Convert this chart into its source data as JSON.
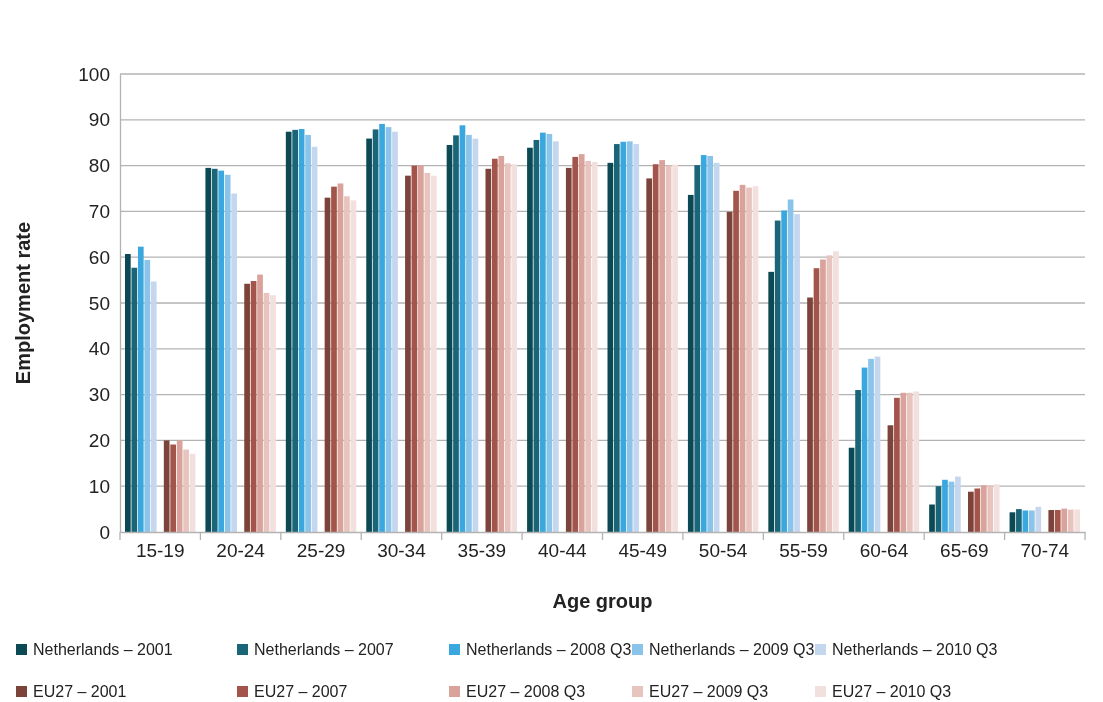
{
  "chart_data": {
    "type": "bar",
    "xlabel": "Age group",
    "ylabel": "Employment rate",
    "categories": [
      "15-19",
      "20-24",
      "25-29",
      "30-34",
      "35-39",
      "40-44",
      "45-49",
      "50-54",
      "55-59",
      "60-64",
      "65-69",
      "70-74"
    ],
    "ylim": [
      0,
      100
    ],
    "yticks": [
      0,
      10,
      20,
      30,
      40,
      50,
      60,
      70,
      80,
      90,
      100
    ],
    "grid": "y",
    "legend": "bottom",
    "series": [
      {
        "name": "Netherlands – 2001",
        "color": "#0b4a55",
        "values": [
          60.7,
          79.5,
          87.4,
          85.9,
          84.5,
          83.9,
          80.6,
          73.6,
          56.8,
          18.4,
          6,
          4.3
        ]
      },
      {
        "name": "Netherlands – 2007",
        "color": "#1a6577",
        "values": [
          57.7,
          79.3,
          87.8,
          87.9,
          86.6,
          85.6,
          84.7,
          80.1,
          68,
          31,
          10,
          5
        ]
      },
      {
        "name": "Netherlands – 2008 Q3",
        "color": "#3aa8de",
        "values": [
          62.3,
          78.9,
          88,
          89.1,
          88.8,
          87.2,
          85.2,
          82.3,
          70.2,
          35.9,
          11.4,
          4.7
        ]
      },
      {
        "name": "Netherlands – 2009 Q3",
        "color": "#8ac4ea",
        "values": [
          59.4,
          78,
          86.7,
          88.4,
          86.7,
          86.9,
          85.3,
          82.1,
          72.6,
          37.8,
          11,
          4.7
        ]
      },
      {
        "name": "Netherlands – 2010 Q3",
        "color": "#c5d7ee",
        "values": [
          54.7,
          73.9,
          84.1,
          87.4,
          85.9,
          85.3,
          84.7,
          80.6,
          69.4,
          38.3,
          12.1,
          5.5
        ]
      },
      {
        "name": "EU27 – 2001",
        "color": "#7b4339",
        "values": [
          20,
          54.2,
          73,
          77.8,
          79.3,
          79.5,
          77.2,
          69.9,
          51.2,
          23.3,
          8.8,
          4.8
        ]
      },
      {
        "name": "EU27 – 2007",
        "color": "#a4554b",
        "values": [
          19.1,
          54.8,
          75.4,
          80,
          81.5,
          81.9,
          80.3,
          74.5,
          57.6,
          29.3,
          9.5,
          4.8
        ]
      },
      {
        "name": "EU27 – 2008 Q3",
        "color": "#d9a29b",
        "values": [
          20,
          56.2,
          76.1,
          80.1,
          82.1,
          82.5,
          81.2,
          75.8,
          59.5,
          30.4,
          10.2,
          5.1
        ]
      },
      {
        "name": "EU27 – 2009 Q3",
        "color": "#e8c4bf",
        "values": [
          18,
          52.2,
          73.3,
          78.4,
          80.5,
          81,
          80,
          75.2,
          60.4,
          30.4,
          10.2,
          4.9
        ]
      },
      {
        "name": "EU27 – 2010 Q3",
        "color": "#f2e0de",
        "values": [
          17.1,
          51.7,
          72.4,
          77.8,
          80.3,
          80.8,
          80.2,
          75.5,
          61.3,
          30.7,
          10.4,
          4.9
        ]
      }
    ]
  }
}
